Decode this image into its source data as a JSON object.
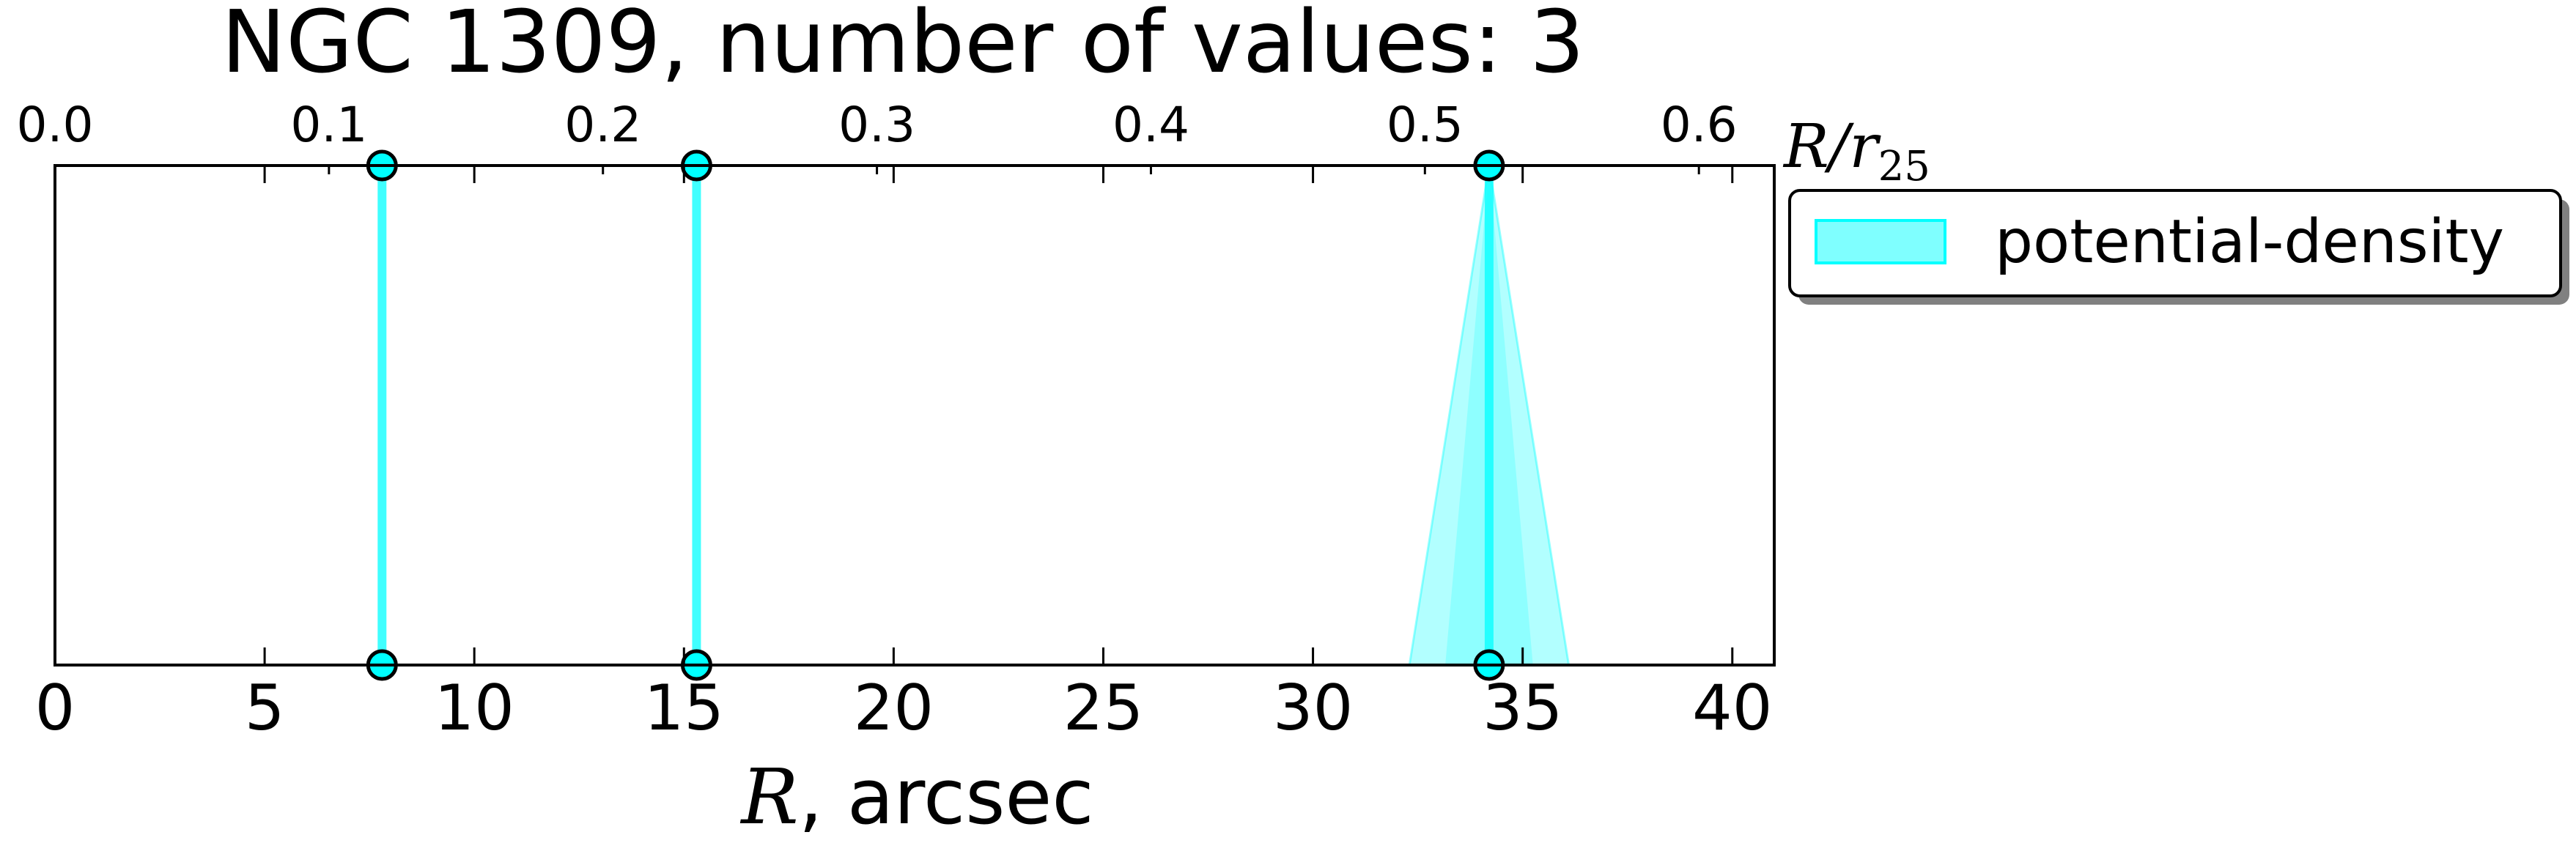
{
  "chart_data": {
    "type": "scatter",
    "title": "NGC 1309, number of values: 3",
    "xlabel_symbol": "R",
    "xlabel_unit": ", arcsec",
    "top_xlabel_numerator": "R/r",
    "top_xlabel_subscript": "25",
    "xlim": [
      0,
      41
    ],
    "top_xlim": [
      0,
      0.6275
    ],
    "x_ticks": [
      "0",
      "5",
      "10",
      "15",
      "20",
      "25",
      "30",
      "35",
      "40"
    ],
    "top_x_ticks": [
      "0.0",
      "0.1",
      "0.2",
      "0.3",
      "0.4",
      "0.5",
      "0.6"
    ],
    "grid": false,
    "legend_position": "outside-right-top",
    "series": [
      {
        "name": "potential-density",
        "color": "#00ffff",
        "points": [
          {
            "x": 7.8,
            "x_low": 7.8,
            "x_high": 7.8
          },
          {
            "x": 15.3,
            "x_low": 15.3,
            "x_high": 15.3
          },
          {
            "x": 34.2,
            "x_low": 32.3,
            "x_high": 36.1
          }
        ]
      }
    ]
  }
}
